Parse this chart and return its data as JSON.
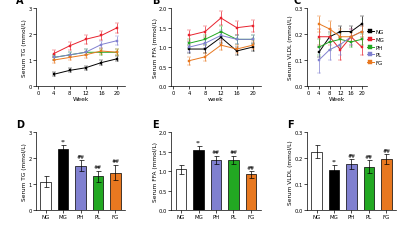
{
  "weeks": [
    0,
    4,
    8,
    12,
    16,
    20
  ],
  "line_colors": {
    "NG": "#000000",
    "MG": "#e8222e",
    "PH": "#22a822",
    "PL": "#8080d0",
    "FG": "#e87820"
  },
  "tg_means": {
    "NG": [
      null,
      0.45,
      0.6,
      0.7,
      0.9,
      1.05
    ],
    "MG": [
      null,
      1.25,
      1.55,
      1.8,
      1.95,
      2.25
    ],
    "PH": [
      null,
      1.1,
      1.2,
      1.3,
      1.3,
      1.3
    ],
    "PL": [
      null,
      1.1,
      1.2,
      1.3,
      1.6,
      1.75
    ],
    "FG": [
      null,
      1.0,
      1.1,
      1.2,
      1.35,
      1.3
    ]
  },
  "tg_errors": {
    "NG": [
      null,
      0.08,
      0.08,
      0.08,
      0.1,
      0.1
    ],
    "MG": [
      null,
      0.12,
      0.15,
      0.18,
      0.18,
      0.2
    ],
    "PH": [
      null,
      0.1,
      0.1,
      0.12,
      0.12,
      0.12
    ],
    "PL": [
      null,
      0.1,
      0.1,
      0.12,
      0.15,
      0.18
    ],
    "FG": [
      null,
      0.1,
      0.1,
      0.12,
      0.12,
      0.12
    ]
  },
  "ffa_means": {
    "NG": [
      null,
      0.95,
      0.95,
      1.25,
      0.9,
      1.0
    ],
    "MG": [
      null,
      1.3,
      1.4,
      1.75,
      1.5,
      1.55
    ],
    "PH": [
      null,
      1.1,
      1.2,
      1.4,
      1.2,
      1.2
    ],
    "PL": [
      null,
      1.0,
      1.1,
      1.3,
      1.2,
      1.2
    ],
    "FG": [
      null,
      0.65,
      0.75,
      1.05,
      0.95,
      1.05
    ]
  },
  "ffa_errors": {
    "NG": [
      null,
      0.1,
      0.1,
      0.15,
      0.1,
      0.1
    ],
    "MG": [
      null,
      0.15,
      0.15,
      0.18,
      0.18,
      0.15
    ],
    "PH": [
      null,
      0.12,
      0.12,
      0.15,
      0.12,
      0.12
    ],
    "PL": [
      null,
      0.12,
      0.12,
      0.15,
      0.12,
      0.12
    ],
    "FG": [
      null,
      0.1,
      0.1,
      0.12,
      0.1,
      0.1
    ]
  },
  "vldl_means": {
    "NG": [
      null,
      0.13,
      0.19,
      0.21,
      0.21,
      0.24
    ],
    "MG": [
      null,
      0.19,
      0.19,
      0.14,
      0.19,
      0.15
    ],
    "PH": [
      null,
      0.15,
      0.17,
      0.18,
      0.17,
      0.18
    ],
    "PL": [
      null,
      0.1,
      0.14,
      0.16,
      0.19,
      0.21
    ],
    "FG": [
      null,
      0.24,
      0.22,
      0.19,
      0.19,
      0.21
    ]
  },
  "vldl_errors": {
    "NG": [
      null,
      0.02,
      0.02,
      0.02,
      0.02,
      0.03
    ],
    "MG": [
      null,
      0.03,
      0.03,
      0.04,
      0.03,
      0.03
    ],
    "PH": [
      null,
      0.03,
      0.03,
      0.03,
      0.02,
      0.02
    ],
    "PL": [
      null,
      0.05,
      0.04,
      0.04,
      0.03,
      0.02
    ],
    "FG": [
      null,
      0.03,
      0.03,
      0.03,
      0.02,
      0.02
    ]
  },
  "bar_categories": [
    "NG",
    "MG",
    "PH",
    "PL",
    "FG"
  ],
  "bar_colors": [
    "#ffffff",
    "#000000",
    "#8080d0",
    "#22a822",
    "#e87820"
  ],
  "bar_tg_means": [
    1.1,
    2.35,
    1.72,
    1.3,
    1.45
  ],
  "bar_tg_errors": [
    0.2,
    0.18,
    0.2,
    0.22,
    0.3
  ],
  "bar_ffa_means": [
    1.05,
    1.55,
    1.3,
    1.3,
    0.92
  ],
  "bar_ffa_errors": [
    0.12,
    0.1,
    0.1,
    0.1,
    0.08
  ],
  "bar_vldl_means": [
    0.225,
    0.155,
    0.178,
    0.168,
    0.198
  ],
  "bar_vldl_errors": [
    0.025,
    0.018,
    0.018,
    0.025,
    0.018
  ],
  "tg_annot": {
    "NG": "",
    "MG": "**",
    "PH": "**\n##",
    "PL": "**\n##",
    "FG": "**\n##"
  },
  "ffa_annot": {
    "NG": "",
    "MG": "**",
    "PH": "**\n##",
    "PL": "**\n##",
    "FG": "**\n##"
  },
  "vldl_annot": {
    "NG": "",
    "MG": "**",
    "PH": "**\n##",
    "PL": "**\n##",
    "FG": "**\n##"
  },
  "groups": [
    "NG",
    "MG",
    "PH",
    "PL",
    "FG"
  ]
}
